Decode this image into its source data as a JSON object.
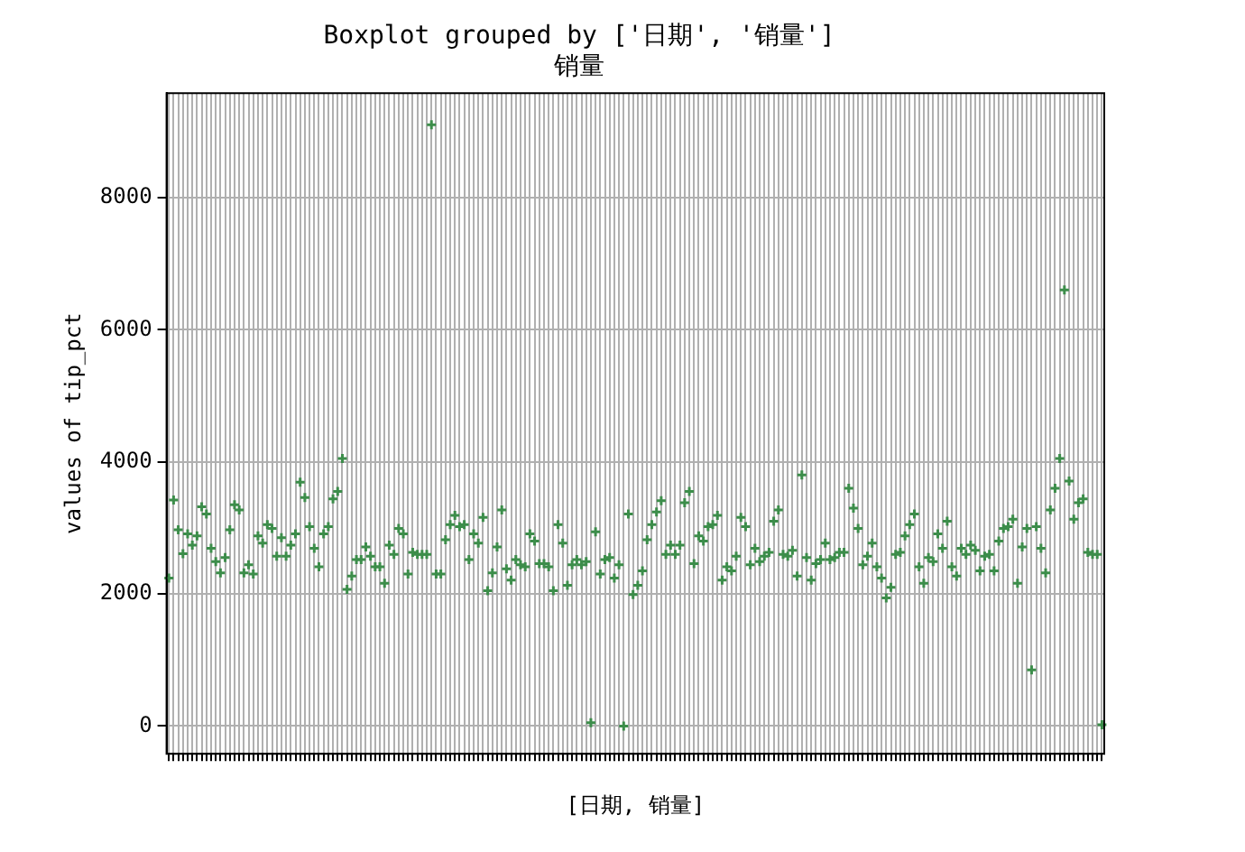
{
  "chart_data": {
    "type": "scatter",
    "title": "Boxplot grouped by ['日期', '销量']",
    "subtitle": "销量",
    "xlabel": "[日期, 销量]",
    "ylabel": "values of tip_pct",
    "color": "#3c8d4a",
    "marker": "cross",
    "grid": true,
    "tick_labels": "y",
    "ylim": [
      -420,
      9580
    ],
    "yticks": [
      0,
      2000,
      4000,
      6000,
      8000
    ],
    "categories": [
      null,
      null,
      null,
      null,
      null,
      null,
      null,
      null,
      null,
      null,
      null,
      null,
      null,
      null,
      null,
      null,
      null,
      null,
      null,
      null,
      null,
      null,
      null,
      null,
      null,
      null,
      null,
      null,
      null,
      null,
      null,
      null,
      null,
      null,
      null,
      null,
      null,
      null,
      null,
      null,
      null,
      null,
      null,
      null,
      null,
      null,
      null,
      null,
      null,
      null,
      null,
      null,
      null,
      null,
      null,
      null,
      null,
      null,
      null,
      null,
      null,
      null,
      null,
      null,
      null,
      null,
      null,
      null,
      null,
      null,
      null,
      null,
      null,
      null,
      null,
      null,
      null,
      null,
      null,
      null,
      null,
      null,
      null,
      null,
      null,
      null,
      null,
      null,
      null,
      null,
      null,
      null,
      null,
      null,
      null,
      null,
      null,
      null,
      null,
      null,
      null,
      null,
      null,
      null,
      null,
      null,
      null,
      null,
      null,
      null,
      null,
      null,
      null,
      null,
      null,
      null,
      null,
      null,
      null,
      null,
      null,
      null,
      null,
      null,
      null,
      null,
      null,
      null,
      null,
      null,
      null,
      null,
      null,
      null,
      null,
      null,
      null,
      null,
      null,
      null,
      null,
      null,
      null,
      null,
      null,
      null,
      null,
      null,
      null,
      null,
      null,
      null,
      null,
      null,
      null,
      null,
      null,
      null,
      null,
      null,
      null,
      null,
      null,
      null,
      null,
      null,
      null,
      null,
      null,
      null,
      null,
      null,
      null,
      null,
      null,
      null,
      null,
      null,
      null,
      null,
      null,
      null,
      null,
      null,
      null,
      null,
      null,
      null,
      null,
      null,
      null,
      null,
      null,
      null,
      null,
      null,
      null,
      null,
      null,
      null
    ],
    "values": [
      2240,
      3420,
      2970,
      2610,
      2910,
      2740,
      2880,
      3320,
      3210,
      2690,
      2490,
      2320,
      2550,
      2970,
      3350,
      3270,
      2320,
      2440,
      2300,
      2880,
      2770,
      3050,
      2990,
      2570,
      2850,
      2570,
      2740,
      2910,
      3690,
      3460,
      3020,
      2690,
      2410,
      2910,
      3020,
      3440,
      3550,
      4050,
      2070,
      2270,
      2520,
      2520,
      2710,
      2570,
      2410,
      2410,
      2160,
      2740,
      2600,
      2990,
      2910,
      2300,
      2630,
      2600,
      2600,
      2600,
      9100,
      2300,
      2300,
      2820,
      3050,
      3190,
      3020,
      3050,
      2520,
      2910,
      2770,
      3160,
      2050,
      2320,
      2710,
      3270,
      2380,
      2210,
      2520,
      2440,
      2410,
      2910,
      2800,
      2460,
      2460,
      2410,
      2050,
      3050,
      2770,
      2130,
      2440,
      2520,
      2440,
      2490,
      50,
      2940,
      2300,
      2520,
      2550,
      2240,
      2440,
      0,
      3210,
      1990,
      2130,
      2350,
      2820,
      3050,
      3240,
      3410,
      2600,
      2740,
      2600,
      2740,
      3380,
      3550,
      2460,
      2880,
      2800,
      3020,
      3050,
      3190,
      2210,
      2410,
      2350,
      2570,
      3160,
      3020,
      2440,
      2690,
      2490,
      2570,
      2630,
      3100,
      3270,
      2600,
      2570,
      2660,
      2270,
      3800,
      2550,
      2210,
      2460,
      2520,
      2770,
      2520,
      2550,
      2630,
      2630,
      3600,
      3300,
      2990,
      2440,
      2570,
      2770,
      2410,
      2240,
      1940,
      2100,
      2600,
      2630,
      2880,
      3050,
      3210,
      2410,
      2160,
      2550,
      2490,
      2910,
      2690,
      3100,
      2410,
      2270,
      2690,
      2600,
      2740,
      2660,
      2350,
      2570,
      2600,
      2350,
      2800,
      2990,
      3020,
      3130,
      2160,
      2710,
      2990,
      850,
      3020,
      2690,
      2320,
      3270,
      3600,
      4050,
      6600,
      3710,
      3130,
      3380,
      3440,
      2630,
      2600,
      2600,
      20
    ]
  }
}
